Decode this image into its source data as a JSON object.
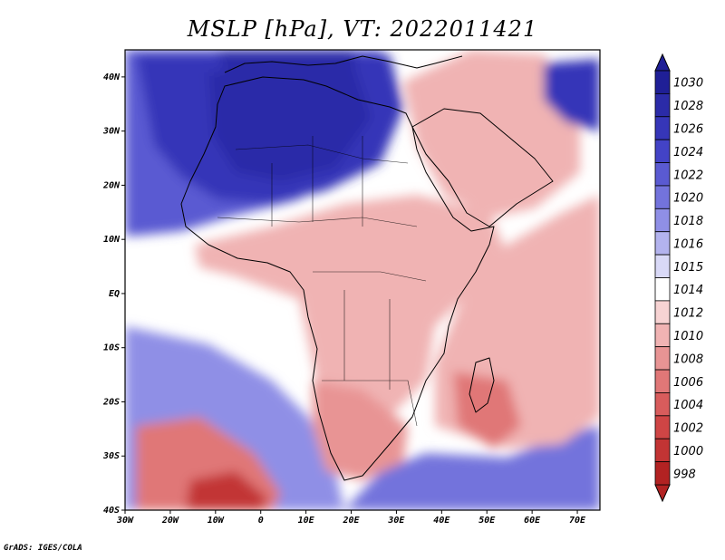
{
  "title": "MSLP [hPa], VT: 2022011421",
  "credit": "GrADS: IGES/COLA",
  "map": {
    "lon_range": [
      -30,
      75
    ],
    "lat_range": [
      -40,
      45
    ],
    "lon_ticks": [
      {
        "value": -30,
        "label": "30W"
      },
      {
        "value": -20,
        "label": "20W"
      },
      {
        "value": -10,
        "label": "10W"
      },
      {
        "value": 0,
        "label": "0"
      },
      {
        "value": 10,
        "label": "10E"
      },
      {
        "value": 20,
        "label": "20E"
      },
      {
        "value": 30,
        "label": "30E"
      },
      {
        "value": 40,
        "label": "40E"
      },
      {
        "value": 50,
        "label": "50E"
      },
      {
        "value": 60,
        "label": "60E"
      },
      {
        "value": 70,
        "label": "70E"
      }
    ],
    "lat_ticks": [
      {
        "value": 40,
        "label": "40N"
      },
      {
        "value": 30,
        "label": "30N"
      },
      {
        "value": 20,
        "label": "20N"
      },
      {
        "value": 10,
        "label": "10N"
      },
      {
        "value": 0,
        "label": "EQ"
      },
      {
        "value": -10,
        "label": "10S"
      },
      {
        "value": -20,
        "label": "20S"
      },
      {
        "value": -30,
        "label": "30S"
      },
      {
        "value": -40,
        "label": "40S"
      }
    ]
  },
  "colorbar": {
    "levels": [
      {
        "label": "1030",
        "color": "#1f1f96"
      },
      {
        "label": "1028",
        "color": "#2b2ba8"
      },
      {
        "label": "1026",
        "color": "#3636b8"
      },
      {
        "label": "1024",
        "color": "#4343c6"
      },
      {
        "label": "1022",
        "color": "#5a5ad2"
      },
      {
        "label": "1020",
        "color": "#7373dc"
      },
      {
        "label": "1018",
        "color": "#8f8fe6"
      },
      {
        "label": "1016",
        "color": "#b3b3ee"
      },
      {
        "label": "1015",
        "color": "#d9d9f7"
      },
      {
        "label": "1014",
        "color": "#ffffff"
      },
      {
        "label": "1012",
        "color": "#f7d3d3"
      },
      {
        "label": "1010",
        "color": "#f0b3b3"
      },
      {
        "label": "1008",
        "color": "#e89494"
      },
      {
        "label": "1006",
        "color": "#e07777"
      },
      {
        "label": "1004",
        "color": "#d85c5c"
      },
      {
        "label": "1002",
        "color": "#cf4545"
      },
      {
        "label": "1000",
        "color": "#c23434"
      },
      {
        "label": "998",
        "color": "#b22222"
      }
    ]
  },
  "pressure_field": {
    "background": "1014",
    "regions": [
      {
        "name": "northwest-atlantic-high",
        "level": "1022"
      },
      {
        "name": "sahara-high",
        "level": "1026"
      },
      {
        "name": "sahara-core",
        "level": "1028"
      },
      {
        "name": "mediterranean-high",
        "level": "1028"
      },
      {
        "name": "west-central-africa-low",
        "level": "1010"
      },
      {
        "name": "indian-ocean-low",
        "level": "1010"
      },
      {
        "name": "south-atlantic-high",
        "level": "1018"
      },
      {
        "name": "south-atlantic-low",
        "level": "1006"
      },
      {
        "name": "south-atlantic-low-core",
        "level": "1000"
      },
      {
        "name": "southern-africa-low",
        "level": "1008"
      },
      {
        "name": "mozambique-channel-low",
        "level": "1006"
      },
      {
        "name": "arabia-low",
        "level": "1010"
      },
      {
        "name": "iran-high",
        "level": "1026"
      },
      {
        "name": "southern-indian-ocean-high",
        "level": "1020"
      }
    ]
  }
}
